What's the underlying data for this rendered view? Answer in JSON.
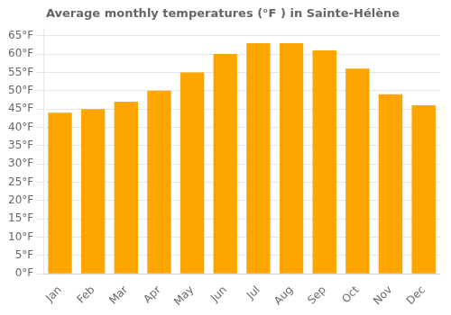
{
  "chart_data": {
    "type": "bar",
    "title": "Average monthly temperatures (°F ) in Sainte-Hélène",
    "categories": [
      "Jan",
      "Feb",
      "Mar",
      "Apr",
      "May",
      "Jun",
      "Jul",
      "Aug",
      "Sep",
      "Oct",
      "Nov",
      "Dec"
    ],
    "values": [
      44,
      45,
      47,
      50,
      55,
      60,
      63,
      63,
      61,
      56,
      49,
      46
    ],
    "color": "#FFA500",
    "ylim": [
      0,
      67
    ],
    "yticks": [
      {
        "value": 0,
        "label": "0°F"
      },
      {
        "value": 5,
        "label": "5°F"
      },
      {
        "value": 10,
        "label": "10°F"
      },
      {
        "value": 15,
        "label": "15°F"
      },
      {
        "value": 20,
        "label": "20°F"
      },
      {
        "value": 25,
        "label": "25°F"
      },
      {
        "value": 30,
        "label": "30°F"
      },
      {
        "value": 35,
        "label": "35°F"
      },
      {
        "value": 40,
        "label": "40°F"
      },
      {
        "value": 45,
        "label": "45°F"
      },
      {
        "value": 50,
        "label": "50°F"
      },
      {
        "value": 55,
        "label": "55°F"
      },
      {
        "value": 60,
        "label": "60°F"
      },
      {
        "value": 65,
        "label": "65°F"
      }
    ],
    "grid": true
  }
}
